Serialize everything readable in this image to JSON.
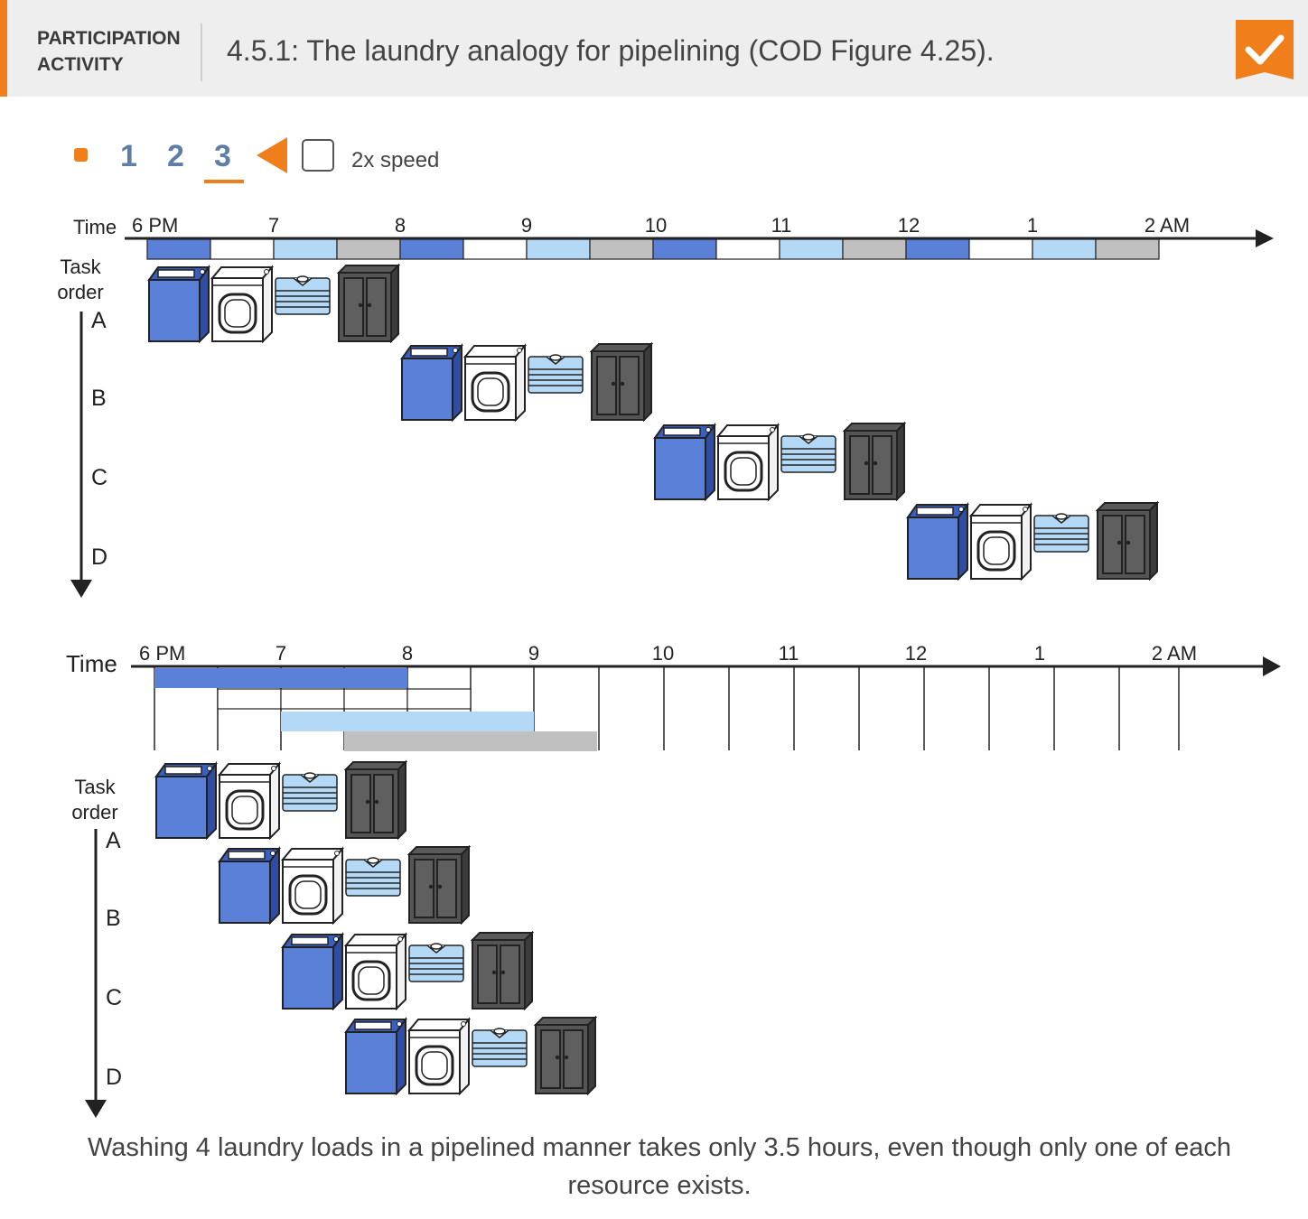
{
  "header": {
    "label_line1": "PARTICIPATION",
    "label_line2": "ACTIVITY",
    "title": "4.5.1: The laundry analogy for pipelining (COD Figure 4.25).",
    "badge_icon": "checkmark-icon",
    "accent_color": "#f07e1a"
  },
  "controls": {
    "steps": [
      "1",
      "2",
      "3"
    ],
    "current_step": "3",
    "speed_label": "2x speed",
    "speed_checked": false
  },
  "colors": {
    "wash": "#5b80d8",
    "dry": "#ffffff",
    "fold": "#b3d9f7",
    "store": "#c0c0c0",
    "axis": "#222222"
  },
  "top_diagram": {
    "time_label": "Time",
    "ticks": [
      "6 PM",
      "7",
      "8",
      "9",
      "10",
      "11",
      "12",
      "1",
      "2 AM"
    ],
    "task_label_line1": "Task",
    "task_label_line2": "order",
    "tasks": [
      "A",
      "B",
      "C",
      "D"
    ]
  },
  "bottom_diagram": {
    "time_label": "Time",
    "ticks": [
      "6 PM",
      "7",
      "8",
      "9",
      "10",
      "11",
      "12",
      "1",
      "2 AM"
    ],
    "task_label_line1": "Task",
    "task_label_line2": "order",
    "tasks": [
      "A",
      "B",
      "C",
      "D"
    ]
  },
  "caption": "Washing 4 laundry loads in a pipelined manner takes only 3.5 hours, even though only one of each resource exists."
}
